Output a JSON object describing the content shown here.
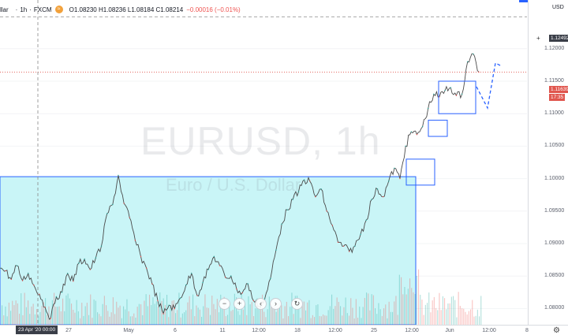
{
  "header": {
    "symbol_partial": "llar",
    "interval": "1h",
    "exchange": "FXCM",
    "open": "O1.08230",
    "high": "H1.08236",
    "low": "L1.08184",
    "close": "C1.08214",
    "change": "−0.00016 (−0.01%)"
  },
  "watermark": {
    "symbol": "EURUSD, 1h",
    "description": "Euro / U.S. Dollar"
  },
  "price_axis": {
    "currency": "USD",
    "ticks": [
      "1.12000",
      "1.11500",
      "1.11000",
      "1.10500",
      "1.10000",
      "1.09500",
      "1.09000",
      "1.08500",
      "1.08000"
    ],
    "crosshair_label": "1.12492",
    "last_price": "1.11639",
    "countdown": "17:35"
  },
  "time_axis": {
    "ticks": [
      "27",
      "May",
      "6",
      "11",
      "12:00",
      "18",
      "12:00",
      "25",
      "12:00",
      "Jun",
      "12:00",
      "8"
    ],
    "crosshair_label": "23 Apr '20   00:00"
  },
  "controls": {
    "zoom_out": "−",
    "zoom_in": "+",
    "scroll_left": "‹",
    "scroll_right": "›",
    "reset": "↻"
  },
  "colors": {
    "up": "#26a69a",
    "down": "#ef5350",
    "rect_fill": "#c9f5f7",
    "rect_border": "#2962ff",
    "last_price": "#e0554d"
  },
  "chart_data": {
    "type": "line",
    "xlabel": "",
    "ylabel": "",
    "ylim": [
      1.0775,
      1.1275
    ],
    "series": [
      {
        "values": [
          1.0862,
          1.0858,
          1.0845,
          1.0866,
          1.0843,
          1.0854,
          1.0836,
          1.0822,
          1.0802,
          1.0785,
          1.0818,
          1.0825,
          1.0854,
          1.0842,
          1.087,
          1.0876,
          1.086,
          1.0878,
          1.0896,
          1.0946,
          1.096,
          1.1005,
          1.0962,
          1.094,
          1.0905,
          1.088,
          1.0862,
          1.0838,
          1.0812,
          1.0792,
          1.0805,
          1.08,
          1.0816,
          1.0836,
          1.0854,
          1.082,
          1.084,
          1.086,
          1.088,
          1.0866,
          1.0848,
          1.085,
          1.083,
          1.0824,
          1.0838,
          1.0812,
          1.0804,
          1.0815,
          1.0846,
          1.089,
          1.093,
          1.0952,
          1.0968,
          1.098,
          1.0998,
          1.0996,
          1.0972,
          1.0984,
          1.095,
          1.0928,
          1.0902,
          1.0896,
          1.0888,
          1.0896,
          1.0914,
          1.0936,
          1.0968,
          1.0984,
          1.0972,
          1.0996,
          1.1016,
          1.1,
          1.105,
          1.1072,
          1.1068,
          1.108,
          1.1108,
          1.113,
          1.1126,
          1.1136,
          1.114,
          1.1128,
          1.113,
          1.118,
          1.1192,
          1.1164
        ]
      }
    ]
  }
}
